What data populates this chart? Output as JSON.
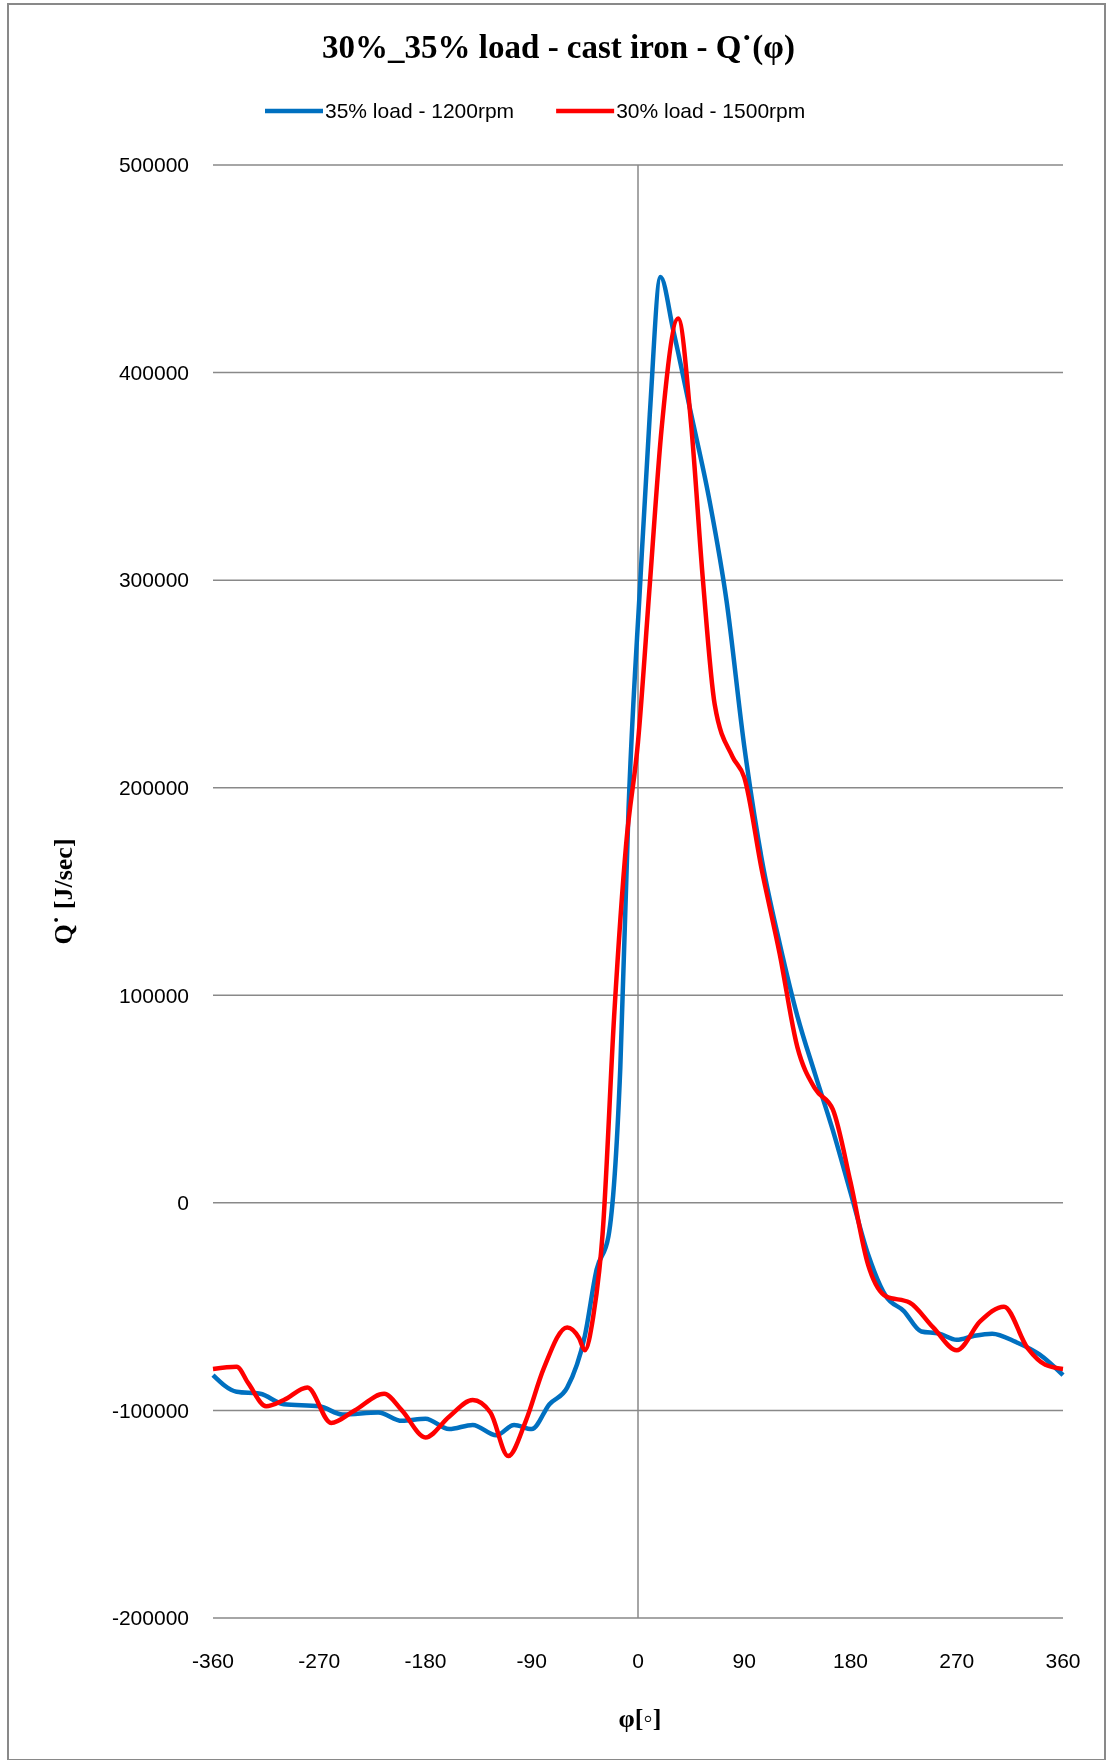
{
  "chart_data": {
    "type": "line",
    "title": "30%_35% load - cast iron - Q˙(φ)",
    "xlabel": "φ[◦]",
    "ylabel": "Q˙ [J/sec]",
    "xlim": [
      -360,
      360
    ],
    "xticks": [
      -360,
      -270,
      -180,
      -90,
      0,
      90,
      180,
      270,
      360
    ],
    "ylim": [
      -200000,
      500000
    ],
    "yticks": [
      -200000,
      -100000,
      0,
      100000,
      200000,
      300000,
      400000,
      500000
    ],
    "grid": "y",
    "legend": "top",
    "line_style": "solid",
    "marker": "none",
    "ref_lines": [
      {
        "axis": "x",
        "value": 0,
        "color": "#898989"
      }
    ],
    "series": [
      {
        "name": "35% load - 1200rpm",
        "color": "#0070c0",
        "x": [
          -360,
          -340,
          -320,
          -300,
          -270,
          -250,
          -220,
          -200,
          -180,
          -160,
          -140,
          -120,
          -105,
          -90,
          -75,
          -60,
          -45,
          -35,
          -25,
          -15,
          -8,
          2,
          10,
          19,
          30,
          45,
          60,
          75,
          90,
          105,
          120,
          135,
          150,
          165,
          180,
          195,
          210,
          225,
          240,
          255,
          270,
          285,
          300,
          320,
          340,
          360
        ],
        "values": [
          -83000,
          -91000,
          -92000,
          -97000,
          -98000,
          -102000,
          -101000,
          -105000,
          -104000,
          -109000,
          -107000,
          -112000,
          -107000,
          -109000,
          -97000,
          -89000,
          -64000,
          -32000,
          -16000,
          65000,
          190000,
          300000,
          380000,
          446000,
          420000,
          380000,
          340000,
          290000,
          220000,
          165000,
          125000,
          90000,
          62000,
          35000,
          5000,
          -25000,
          -45000,
          -52000,
          -62000,
          -63000,
          -66000,
          -64000,
          -63000,
          -67000,
          -73000,
          -83000
        ]
      },
      {
        "name": "30% load - 1500rpm",
        "color": "#ff0000",
        "x": [
          -360,
          -340,
          -330,
          -315,
          -300,
          -280,
          -260,
          -240,
          -215,
          -200,
          -180,
          -160,
          -140,
          -125,
          -110,
          -95,
          -80,
          -60,
          -50,
          -45,
          -38,
          -30,
          -20,
          -10,
          0,
          10,
          20,
          34,
          45,
          55,
          65,
          80,
          90,
          105,
          120,
          135,
          150,
          165,
          180,
          195,
          210,
          230,
          250,
          270,
          290,
          310,
          330,
          345,
          360
        ],
        "values": [
          -80000,
          -79000,
          -87000,
          -98000,
          -95000,
          -89000,
          -106000,
          -100000,
          -92000,
          -100000,
          -113000,
          -103000,
          -95000,
          -101000,
          -122000,
          -105000,
          -80000,
          -60000,
          -65000,
          -71000,
          -55000,
          -15000,
          92000,
          173000,
          222000,
          298000,
          373000,
          426000,
          375000,
          300000,
          240000,
          215000,
          205000,
          160000,
          120000,
          75000,
          55000,
          45000,
          10000,
          -30000,
          -45000,
          -48000,
          -60000,
          -71000,
          -57000,
          -50000,
          -70000,
          -78000,
          -80000
        ]
      }
    ]
  }
}
